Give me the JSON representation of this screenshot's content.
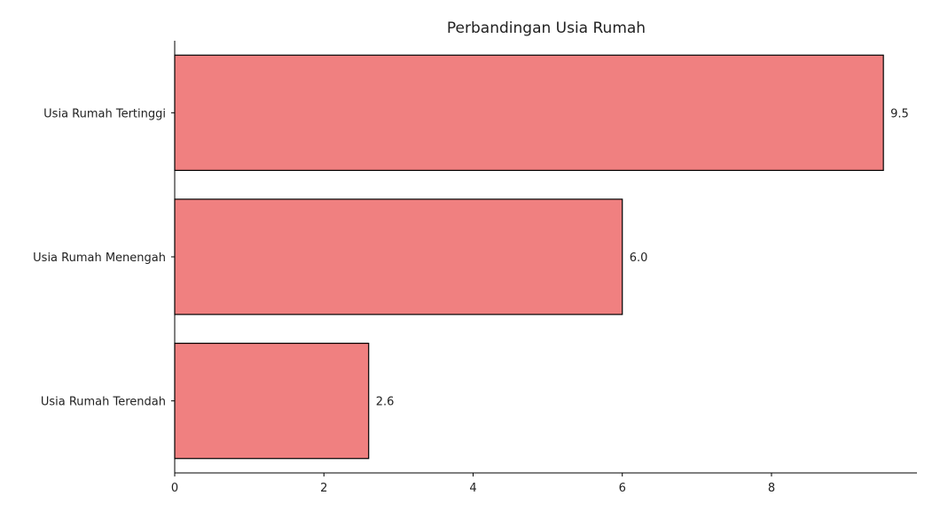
{
  "chart_data": {
    "type": "bar",
    "orientation": "horizontal",
    "title": "Perbandingan Usia Rumah",
    "xlabel": "",
    "ylabel": "",
    "categories": [
      "Usia Rumah Tertinggi",
      "Usia Rumah Menengah",
      "Usia Rumah Terendah"
    ],
    "values": [
      9.5,
      6.0,
      2.6
    ],
    "data_labels": [
      "9.5",
      "6.0",
      "2.6"
    ],
    "xlim": [
      0,
      9.95
    ],
    "xticks": [
      0,
      2,
      4,
      6,
      8
    ],
    "xtick_labels": [
      "0",
      "2",
      "4",
      "6",
      "8"
    ],
    "grid": false,
    "legend": "none",
    "colors": {
      "bar_fill": "#f08080",
      "bar_edge": "#000000",
      "axis": "#000000",
      "text": "#222222"
    }
  }
}
